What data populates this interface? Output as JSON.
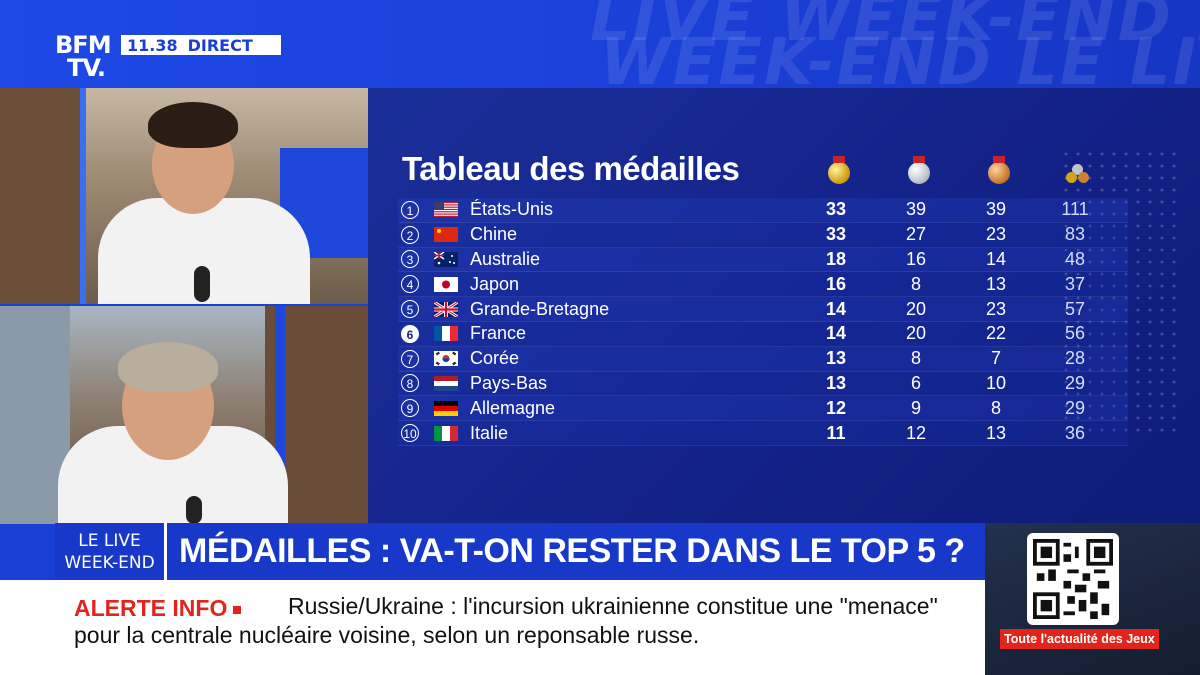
{
  "channel": {
    "logo_line1": "BFM",
    "logo_line2": "TV.",
    "time": "11.38",
    "status": "DIRECT"
  },
  "background_text": {
    "line1": "LIVE WEEK-END LE LIVE WEEK-END",
    "line2": "WEEK-END LE LIVE WEEK-END"
  },
  "medal_table": {
    "title": "Tableau des médailles",
    "columns": [
      "gold-medal-icon",
      "silver-medal-icon",
      "bronze-medal-icon",
      "total-medals-icon"
    ],
    "rows": [
      {
        "rank": "1",
        "flag": "usa",
        "country": "États-Unis",
        "gold": "33",
        "silver": "39",
        "bronze": "39",
        "total": "111"
      },
      {
        "rank": "2",
        "flag": "china",
        "country": "Chine",
        "gold": "33",
        "silver": "27",
        "bronze": "23",
        "total": "83"
      },
      {
        "rank": "3",
        "flag": "australia",
        "country": "Australie",
        "gold": "18",
        "silver": "16",
        "bronze": "14",
        "total": "48"
      },
      {
        "rank": "4",
        "flag": "japan",
        "country": "Japon",
        "gold": "16",
        "silver": "8",
        "bronze": "13",
        "total": "37"
      },
      {
        "rank": "5",
        "flag": "uk",
        "country": "Grande-Bretagne",
        "gold": "14",
        "silver": "20",
        "bronze": "23",
        "total": "57"
      },
      {
        "rank": "6",
        "flag": "france",
        "country": "France",
        "gold": "14",
        "silver": "20",
        "bronze": "22",
        "total": "56"
      },
      {
        "rank": "7",
        "flag": "korea",
        "country": "Corée",
        "gold": "13",
        "silver": "8",
        "bronze": "7",
        "total": "28"
      },
      {
        "rank": "8",
        "flag": "netherlands",
        "country": "Pays-Bas",
        "gold": "13",
        "silver": "6",
        "bronze": "10",
        "total": "29"
      },
      {
        "rank": "9",
        "flag": "germany",
        "country": "Allemagne",
        "gold": "12",
        "silver": "9",
        "bronze": "8",
        "total": "29"
      },
      {
        "rank": "10",
        "flag": "italy",
        "country": "Italie",
        "gold": "11",
        "silver": "12",
        "bronze": "13",
        "total": "36"
      }
    ]
  },
  "headline": {
    "tag_line1": "LE LIVE",
    "tag_line2": "WEEK-END",
    "text": "MÉDAILLES : VA-T-ON RESTER DANS LE TOP 5 ?"
  },
  "ticker": {
    "label": "ALERTE INFO",
    "text": "Russie/Ukraine : l'incursion ukrainienne constitue une \"menace\" pour la centrale nucléaire voisine, selon un reponsable russe."
  },
  "promo": {
    "label": "Toute l'actualité des Jeux"
  },
  "colors": {
    "brand_blue": "#1a3fd6",
    "alert_red": "#e3241b",
    "panel_navy": "#14238a"
  }
}
